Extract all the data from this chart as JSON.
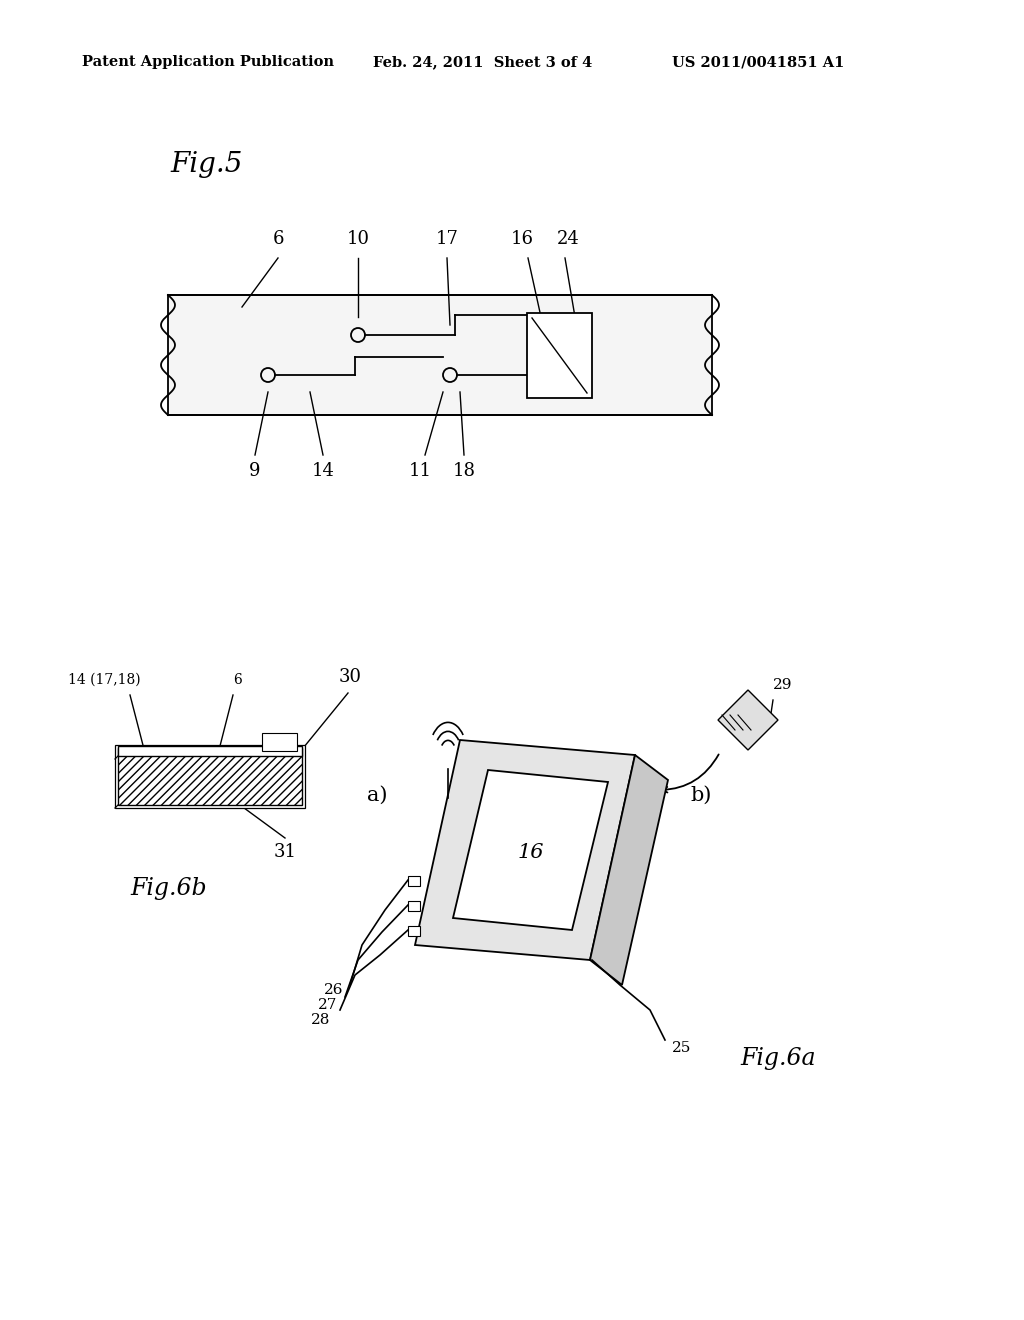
{
  "bg_color": "#ffffff",
  "header_left": "Patent Application Publication",
  "header_mid": "Feb. 24, 2011  Sheet 3 of 4",
  "header_right": "US 2011/0041851 A1",
  "fig5_label": "Fig.5",
  "fig6a_label": "Fig.6a",
  "fig6b_label": "Fig.6b"
}
